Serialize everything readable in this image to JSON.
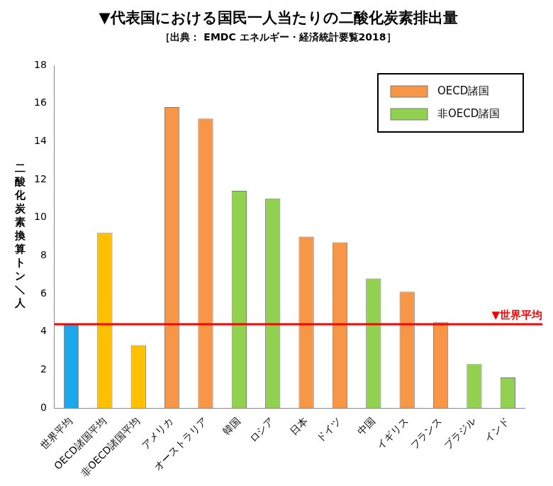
{
  "chart_data": {
    "type": "bar",
    "title": "▼代表国における国民一人当たりの二酸化炭素排出量",
    "subtitle": "［出典： EMDC エネルギー・経済統計要覧2018］",
    "y_label": "二酸化炭素換算トン／人",
    "categories": [
      "世界平均",
      "OECD諸国平均",
      "非OECD諸国平均",
      "アメリカ",
      "オーストラリア",
      "韓国",
      "ロシア",
      "日本",
      "ドイツ",
      "中国",
      "イギリス",
      "フランス",
      "ブラジル",
      "インド"
    ],
    "series": [
      {
        "name": "OECD諸国",
        "color": "#f79646",
        "values": [
          null,
          null,
          null,
          15.8,
          15.2,
          null,
          null,
          9.0,
          8.7,
          null,
          6.1,
          4.5,
          null,
          null
        ]
      },
      {
        "name": "非OECD諸国",
        "color": "#92d050",
        "values": [
          null,
          null,
          null,
          null,
          null,
          11.4,
          11.0,
          null,
          null,
          6.8,
          null,
          null,
          2.3,
          1.6
        ]
      },
      {
        "color": "#1aa7ec",
        "values": [
          4.4,
          null,
          null,
          null,
          null,
          null,
          null,
          null,
          null,
          null,
          null,
          null,
          null,
          null
        ]
      },
      {
        "color": "#ffc000",
        "values": [
          null,
          9.2,
          3.3,
          null,
          null,
          null,
          null,
          null,
          null,
          null,
          null,
          null,
          null,
          null
        ]
      }
    ],
    "reference_line": {
      "value": 4.4,
      "label": "▼世界平均",
      "color": "#ff0000"
    },
    "ylim": [
      0,
      18
    ],
    "yticks": [
      0,
      2,
      4,
      6,
      8,
      10,
      12,
      14,
      16,
      18
    ],
    "grid": false,
    "legend": "upper right"
  }
}
